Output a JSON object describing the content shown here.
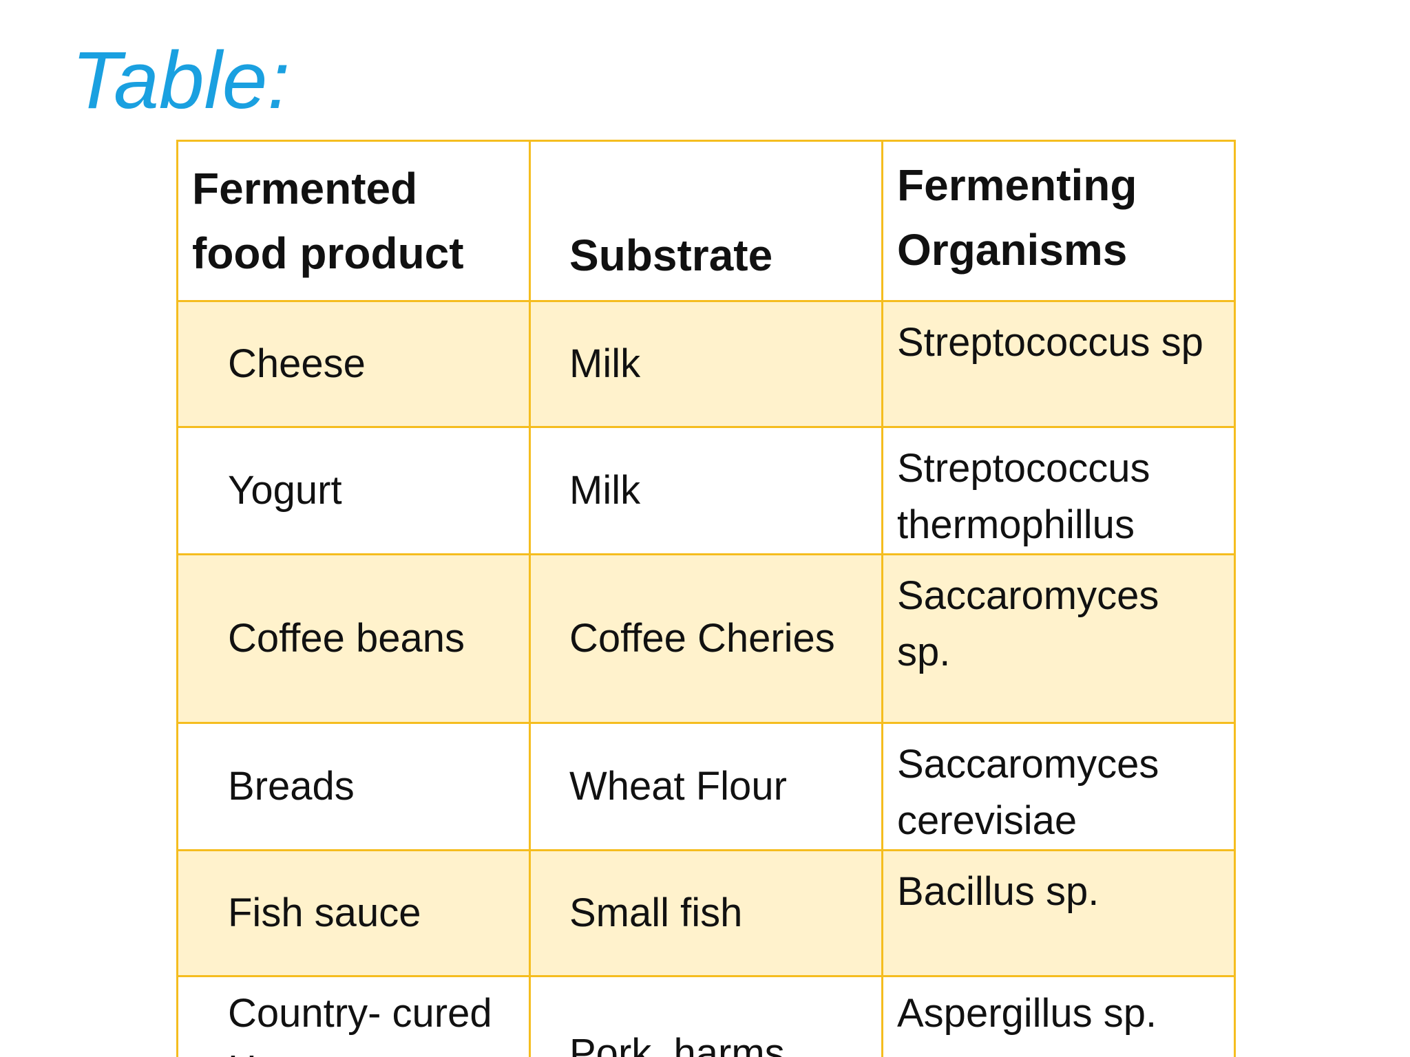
{
  "slide": {
    "title": "Table:"
  },
  "table": {
    "headers": {
      "food": "Fermented food product",
      "substrate": "Substrate",
      "organisms": "Fermenting Organisms"
    },
    "rows": [
      {
        "food": "Cheese",
        "substrate": "Milk",
        "organisms": "Streptococcus sp"
      },
      {
        "food": "Yogurt",
        "substrate": "Milk",
        "organisms": "Streptococcus thermophillus"
      },
      {
        "food": "Coffee beans",
        "substrate": "Coffee Cheries",
        "organisms": "Saccaromyces sp."
      },
      {
        "food": "Breads",
        "substrate": "Wheat Flour",
        "organisms": "Saccaromyces cerevisiae"
      },
      {
        "food": "Fish sauce",
        "substrate": "Small fish",
        "organisms": "Bacillus sp."
      },
      {
        "food": "Country- cured Harms",
        "substrate": "Pork, harms",
        "organisms": "Aspergillus sp."
      }
    ]
  },
  "colors": {
    "title": "#1aa0e0",
    "border": "#f5bd1f",
    "row_shade": "#fff2cc"
  }
}
